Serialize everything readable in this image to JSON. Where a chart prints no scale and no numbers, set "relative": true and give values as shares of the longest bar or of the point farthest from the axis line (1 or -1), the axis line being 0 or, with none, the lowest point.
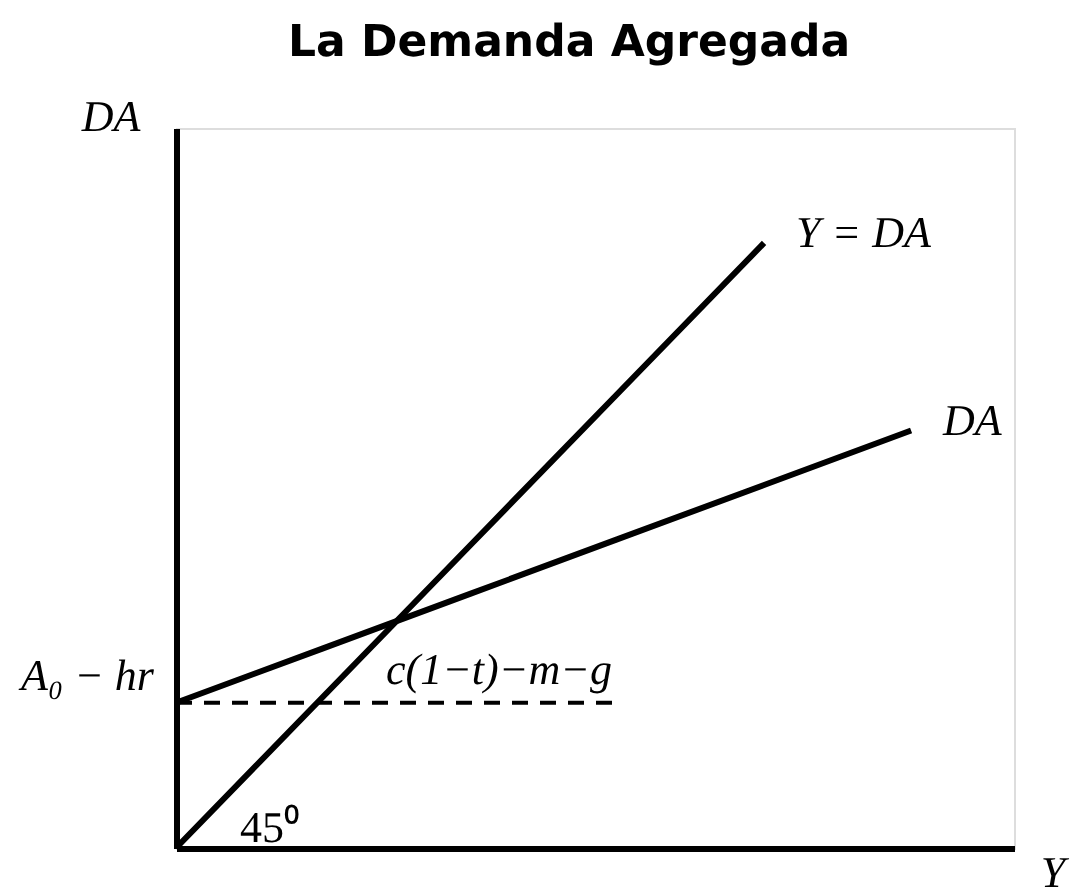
{
  "chart_data": {
    "type": "line",
    "title": "La Demanda Agregada",
    "xlabel": "Y",
    "ylabel": "DA",
    "relative": true,
    "categories": [
      null,
      null,
      null,
      null,
      null,
      null
    ],
    "series": [
      {
        "name": "Y = DA",
        "color": "#000000",
        "values": [
          0,
          0.25,
          0.5,
          0.75,
          1,
          null
        ]
      },
      {
        "name": "DA",
        "color": "#000000",
        "values": [
          0.24,
          0.33,
          0.42,
          0.51,
          0.6,
          0.69
        ]
      },
      {
        "color": "#000000",
        "line_style": "dashed",
        "values": [
          0.24,
          0.24,
          0.24,
          0.24,
          null,
          null
        ]
      }
    ],
    "annotations": [
      "A₀ − hr",
      "c(1−t)−m−g",
      "45⁰"
    ]
  }
}
